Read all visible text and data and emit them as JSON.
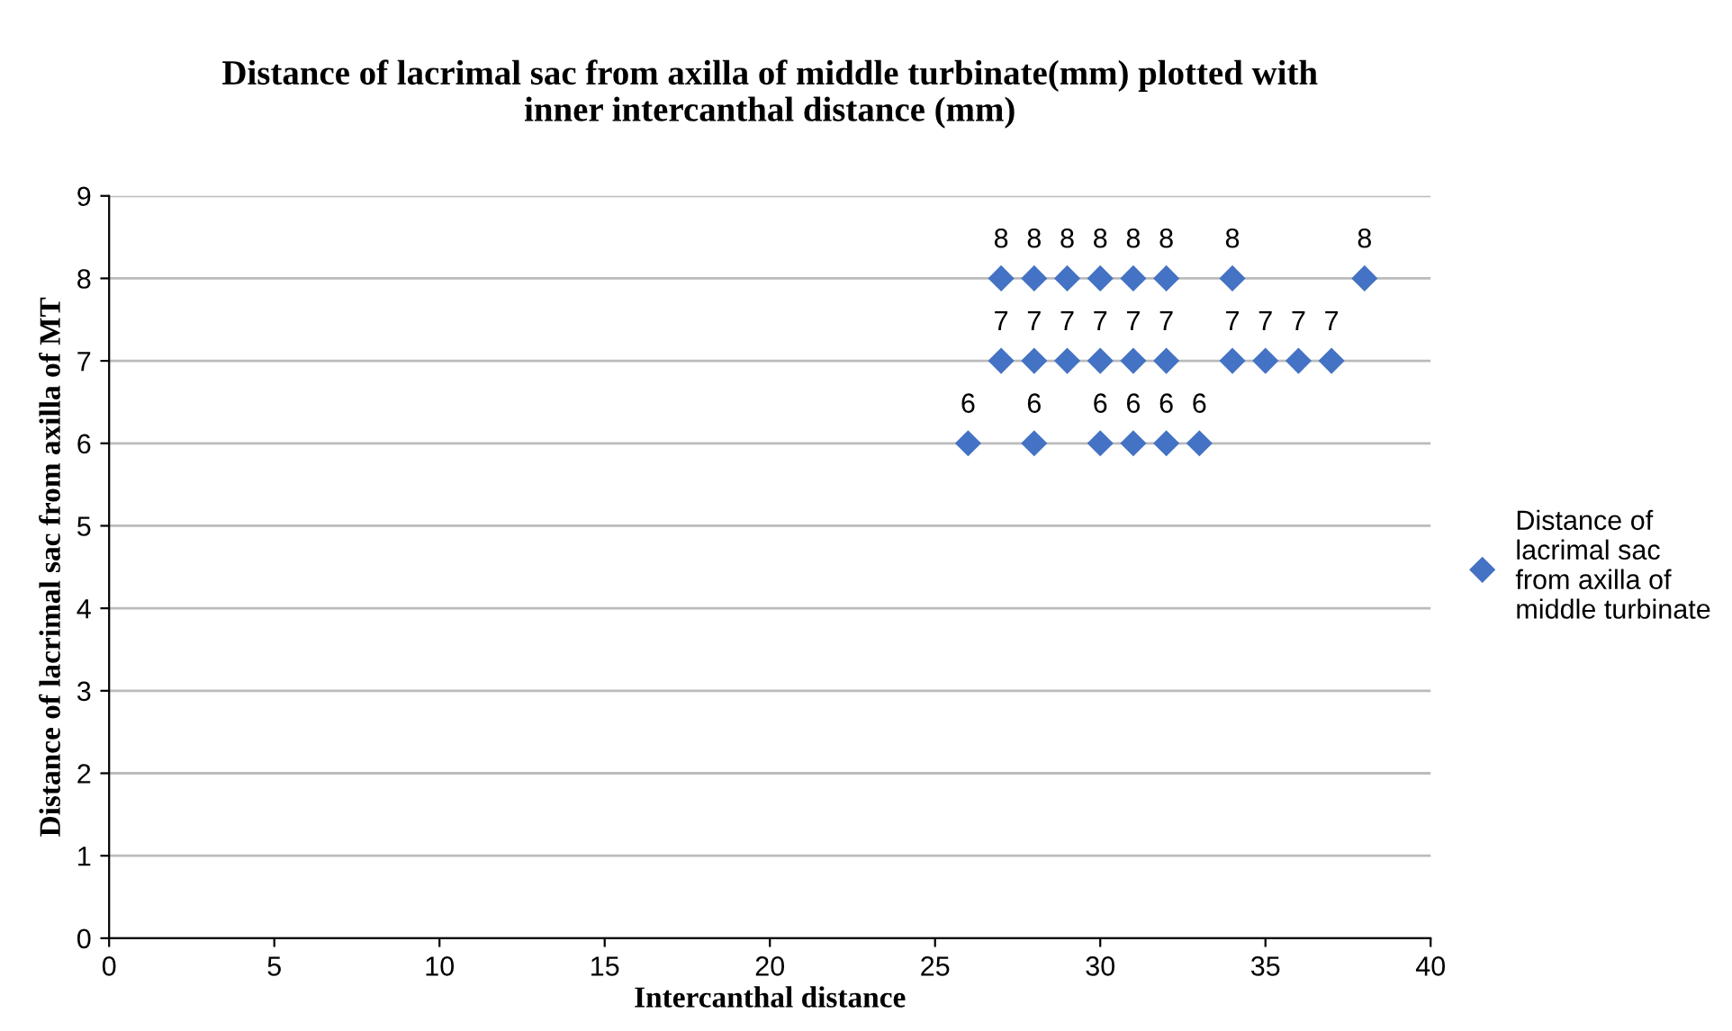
{
  "chart_data": {
    "type": "scatter",
    "title": "Distance of lacrimal sac from axilla of middle turbinate(mm) plotted with\ninner intercanthal distance (mm)",
    "xlabel": "Intercanthal distance",
    "ylabel": "Distance of lacrimal sac from axilla of MT",
    "series": [
      {
        "name": "Distance of lacrimal sac from axilla of middle turbinate",
        "color": "#4472c4",
        "x": [
          27,
          28,
          29,
          30,
          31,
          32,
          34,
          38,
          27,
          28,
          29,
          30,
          31,
          32,
          34,
          35,
          36,
          37,
          26,
          28,
          30,
          31,
          32,
          33
        ],
        "values": [
          8,
          8,
          8,
          8,
          8,
          8,
          8,
          8,
          7,
          7,
          7,
          7,
          7,
          7,
          7,
          7,
          7,
          7,
          6,
          6,
          6,
          6,
          6,
          6
        ]
      }
    ],
    "xlim": [
      0,
      40
    ],
    "xticks": [
      0,
      5,
      10,
      15,
      20,
      25,
      30,
      35,
      40
    ],
    "ylim": [
      0,
      9
    ],
    "yticks": [
      0,
      1,
      2,
      3,
      4,
      5,
      6,
      7,
      8,
      9
    ],
    "grid": "y",
    "legend": "right",
    "marker": "diamond",
    "data_labels": true
  }
}
